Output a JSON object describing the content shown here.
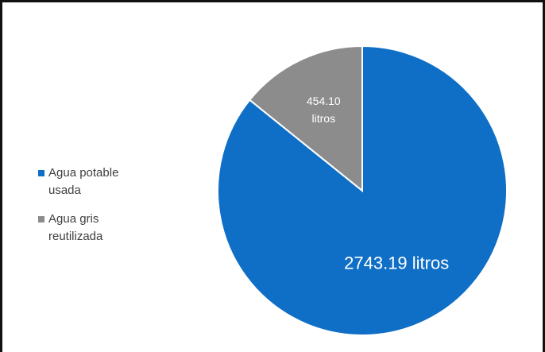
{
  "chart_data": {
    "type": "pie",
    "title": "",
    "categories": [
      "Agua potable\nusada",
      "Agua gris\nreutilizada"
    ],
    "values": [
      2743.19,
      454.1
    ],
    "unit": "litros",
    "data_labels": [
      "2743.19 litros",
      "454.10\nlitros"
    ],
    "colors": [
      "#0f6fc6",
      "#8c8c8c"
    ],
    "legend_position": "left",
    "start_angle_deg": 0,
    "direction": "clockwise"
  }
}
